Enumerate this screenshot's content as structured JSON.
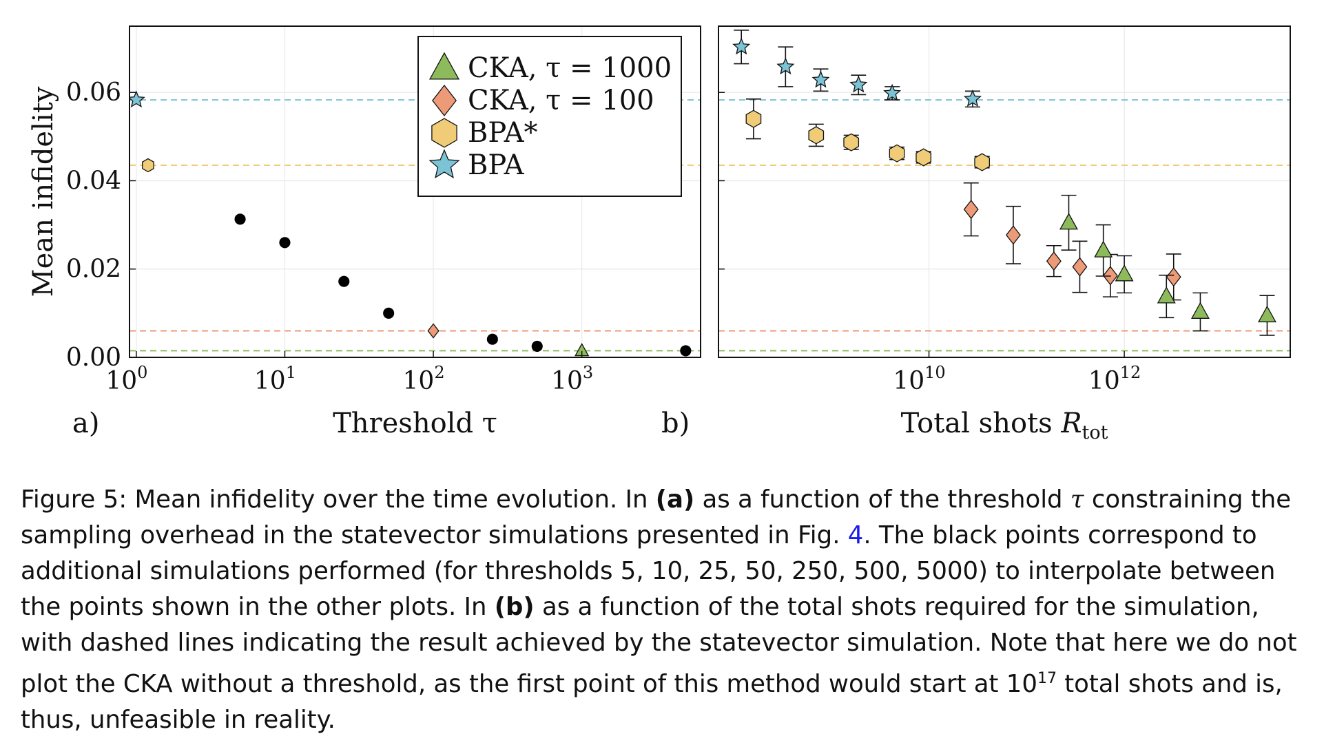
{
  "colors": {
    "cka1000": "#8dbb5c",
    "cka100": "#ec9a78",
    "bpa_star": "#f0cc78",
    "bpa": "#7cc3d6",
    "sv_points": "#000000",
    "frame": "#111111",
    "grid": "#e8e8e8",
    "ref_link": "#1a1aee"
  },
  "chart_data": [
    {
      "type": "scatter",
      "panel_label": "a)",
      "xlabel": "Threshold τ",
      "ylabel": "Mean infidelity",
      "xscale": "log",
      "xlim": [
        0.9,
        6300
      ],
      "ylim": [
        0.0,
        0.075
      ],
      "x_ticks": [
        1,
        10,
        100,
        1000
      ],
      "x_tick_labels": [
        {
          "base": "10",
          "exp": "0"
        },
        {
          "base": "10",
          "exp": "1"
        },
        {
          "base": "10",
          "exp": "2"
        },
        {
          "base": "10",
          "exp": "3"
        }
      ],
      "y_ticks": [
        0.0,
        0.02,
        0.04,
        0.06
      ],
      "y_tick_labels": [
        "0.00",
        "0.02",
        "0.04",
        "0.06"
      ],
      "grid": true,
      "legend_position": "top-right",
      "legend": [
        {
          "label": "CKA, τ = 1000",
          "marker": "triangle",
          "color_key": "cka1000"
        },
        {
          "label": "CKA, τ = 100",
          "marker": "diamond",
          "color_key": "cka100"
        },
        {
          "label": "BPA*",
          "marker": "hexagon",
          "color_key": "bpa_star"
        },
        {
          "label": "BPA",
          "marker": "star",
          "color_key": "bpa"
        }
      ],
      "reference_lines": [
        {
          "series": "BPA",
          "y": 0.0583,
          "color_key": "bpa"
        },
        {
          "series": "BPA*",
          "y": 0.0435,
          "color_key": "bpa_star"
        },
        {
          "series": "CKA, τ = 100",
          "y": 0.006,
          "color_key": "cka100"
        },
        {
          "series": "CKA, τ = 1000",
          "y": 0.0015,
          "color_key": "cka1000"
        }
      ],
      "series": [
        {
          "marker": "circle",
          "color_key": "sv_points",
          "x": [
            5,
            10,
            25,
            50,
            250,
            500,
            5000
          ],
          "y": [
            0.0313,
            0.026,
            0.0172,
            0.01,
            0.0041,
            0.0025,
            0.0015
          ]
        },
        {
          "name": "BPA",
          "marker": "star",
          "color_key": "bpa",
          "x": [
            1
          ],
          "y": [
            0.0583
          ]
        },
        {
          "name": "BPA*",
          "marker": "hexagon",
          "color_key": "bpa_star",
          "x": [
            1.2
          ],
          "y": [
            0.0435
          ]
        },
        {
          "name": "CKA, τ = 100",
          "marker": "diamond",
          "color_key": "cka100",
          "x": [
            100
          ],
          "y": [
            0.006
          ]
        },
        {
          "name": "CKA, τ = 1000",
          "marker": "triangle",
          "color_key": "cka1000",
          "x": [
            1000
          ],
          "y": [
            0.0015
          ]
        }
      ]
    },
    {
      "type": "scatter",
      "panel_label": "b)",
      "xlabel": "Total shots",
      "xlabel_math": {
        "symbol": "R",
        "subscript": "tot"
      },
      "xscale": "log",
      "xlim": [
        70000000.0,
        50000000000000.0
      ],
      "ylim": [
        0.0,
        0.075
      ],
      "x_ticks": [
        10000000000.0,
        1000000000000.0
      ],
      "x_tick_labels": [
        {
          "base": "10",
          "exp": "10"
        },
        {
          "base": "10",
          "exp": "12"
        }
      ],
      "y_ticks": [
        0.0,
        0.02,
        0.04,
        0.06
      ],
      "grid": true,
      "reference_lines": [
        {
          "series": "BPA",
          "y": 0.0583,
          "color_key": "bpa"
        },
        {
          "series": "BPA*",
          "y": 0.0435,
          "color_key": "bpa_star"
        },
        {
          "series": "CKA, τ = 100",
          "y": 0.006,
          "color_key": "cka100"
        },
        {
          "series": "CKA, τ = 1000",
          "y": 0.0015,
          "color_key": "cka1000"
        }
      ],
      "series": [
        {
          "name": "BPA",
          "marker": "star",
          "color_key": "bpa",
          "x": [
            120000000.0,
            340000000.0,
            780000000.0,
            1900000000.0,
            4200000000.0,
            28000000000.0
          ],
          "y": [
            0.0703,
            0.0658,
            0.0628,
            0.0617,
            0.0598,
            0.0585
          ],
          "err": [
            0.0038,
            0.0045,
            0.0025,
            0.0022,
            0.0015,
            0.0018
          ]
        },
        {
          "name": "BPA*",
          "marker": "hexagon",
          "color_key": "bpa_star",
          "x": [
            160000000.0,
            700000000.0,
            1600000000.0,
            4700000000.0,
            8800000000.0,
            35000000000.0
          ],
          "y": [
            0.054,
            0.0503,
            0.0487,
            0.0462,
            0.0453,
            0.0442
          ],
          "err": [
            0.0045,
            0.0025,
            0.0016,
            0.0014,
            0.0013,
            0.0013
          ]
        },
        {
          "name": "CKA, τ = 100",
          "marker": "diamond",
          "color_key": "cka100",
          "x": [
            27000000000.0,
            73000000000.0,
            190000000000.0,
            350000000000.0,
            720000000000.0,
            3200000000000.0
          ],
          "y": [
            0.0335,
            0.0277,
            0.0218,
            0.0205,
            0.0185,
            0.0182
          ],
          "err": [
            0.006,
            0.0065,
            0.0035,
            0.0058,
            0.0048,
            0.0052
          ]
        },
        {
          "name": "CKA, τ = 1000",
          "marker": "triangle",
          "color_key": "cka1000",
          "x": [
            270000000000.0,
            610000000000.0,
            1000000000000.0,
            2700000000000.0,
            6000000000000.0,
            29000000000000.0
          ],
          "y": [
            0.0305,
            0.0242,
            0.0188,
            0.0138,
            0.0103,
            0.0095
          ],
          "err": [
            0.0062,
            0.0058,
            0.0042,
            0.0048,
            0.0043,
            0.0045
          ]
        }
      ]
    }
  ],
  "caption": {
    "label": "Figure 5: Mean infidelity over the time evolution. In ",
    "a": "(a)",
    "t1": " as a function of the threshold ",
    "tau": "τ",
    "t2": " constraining the sampling overhead in the statevector simulations presented in Fig. ",
    "ref": "4",
    "t3": ". The black points correspond to additional simulations performed (for thresholds 5, 10, 25, 50, 250, 500, 5000) to interpolate between the points shown in the other plots. In ",
    "b": "(b)",
    "t4": " as a function of the total shots required for the simulation, with dashed lines indicating the result achieved by the statevector simulation. Note that here we do not plot the CKA without a threshold, as the first point of this method would start at ",
    "pow_base": "10",
    "pow_exp": "17",
    "t5": " total shots and is, thus, unfeasible in reality."
  }
}
